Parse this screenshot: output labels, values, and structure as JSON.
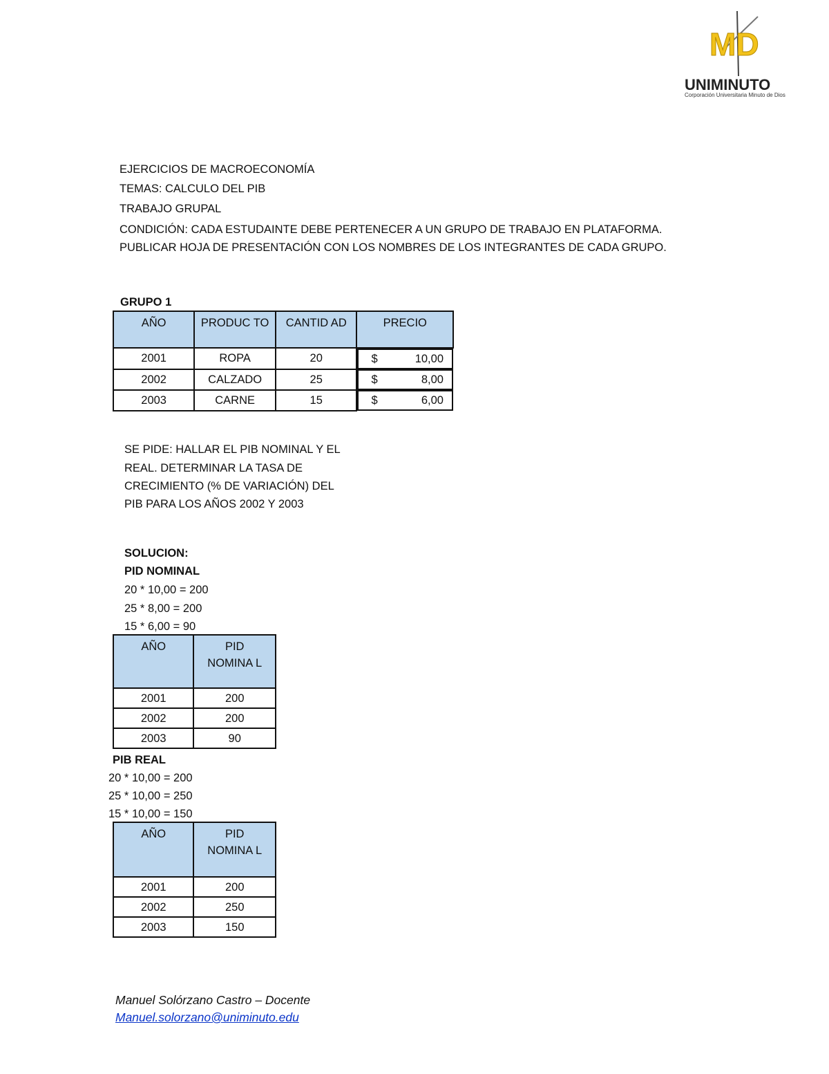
{
  "logo": {
    "mark": "MD",
    "name": "UNIMINUTO",
    "subtitle": "Corporación Universitaria Minuto de Dios",
    "color": "#f2c21b"
  },
  "header_lines": [
    "EJERCICIOS DE MACROECONOMÍA",
    "TEMAS: CALCULO DEL PIB",
    "TRABAJO GRUPAL",
    "CONDICIÓN: CADA ESTUDAINTE DEBE PERTENECER A UN GRUPO DE TRABAJO EN PLATAFORMA.",
    "PUBLICAR HOJA DE PRESENTACIÓN CON LOS NOMBRES DE LOS INTEGRANTES DE CADA GRUPO."
  ],
  "group_title": "GRUPO 1",
  "table1": {
    "headers": [
      "AÑO",
      "PRODUC TO",
      "CANTID AD",
      "PRECIO"
    ],
    "rows": [
      [
        "2001",
        "ROPA",
        "20",
        "$",
        "10,00"
      ],
      [
        "2002",
        "CALZADO",
        "25",
        "$",
        "8,00"
      ],
      [
        "2003",
        "CARNE",
        "15",
        "$",
        "6,00"
      ]
    ]
  },
  "task_lines": [
    "SE PIDE: HALLAR EL PIB NOMINAL Y EL",
    "REAL. DETERMINAR LA TASA DE",
    "CRECIMIENTO (% DE VARIACIÓN) DEL",
    "PIB PARA LOS AÑOS 2002 Y 2003"
  ],
  "solution_title": "SOLUCION:",
  "nominal_title": "PID NOMINAL",
  "nominal_calc": [
    "20 * 10,00 = 200",
    "25 * 8,00 = 200",
    "15 * 6,00 = 90"
  ],
  "table2": {
    "headers": [
      "AÑO",
      "PID NOMINA L"
    ],
    "rows": [
      [
        "2001",
        "200"
      ],
      [
        "2002",
        "200"
      ],
      [
        "2003",
        "90"
      ]
    ]
  },
  "real_title": "PIB REAL",
  "real_calc": [
    "20 * 10,00 = 200",
    "25 * 10,00 = 250",
    "15 * 10,00 = 150"
  ],
  "table3": {
    "headers": [
      "AÑO",
      "PID NOMINA L"
    ],
    "rows": [
      [
        "2001",
        "200"
      ],
      [
        "2002",
        "250"
      ],
      [
        "2003",
        "150"
      ]
    ]
  },
  "footer": {
    "author": "Manuel Solórzano Castro – Docente",
    "email": "Manuel.solorzano@uniminuto.edu"
  }
}
